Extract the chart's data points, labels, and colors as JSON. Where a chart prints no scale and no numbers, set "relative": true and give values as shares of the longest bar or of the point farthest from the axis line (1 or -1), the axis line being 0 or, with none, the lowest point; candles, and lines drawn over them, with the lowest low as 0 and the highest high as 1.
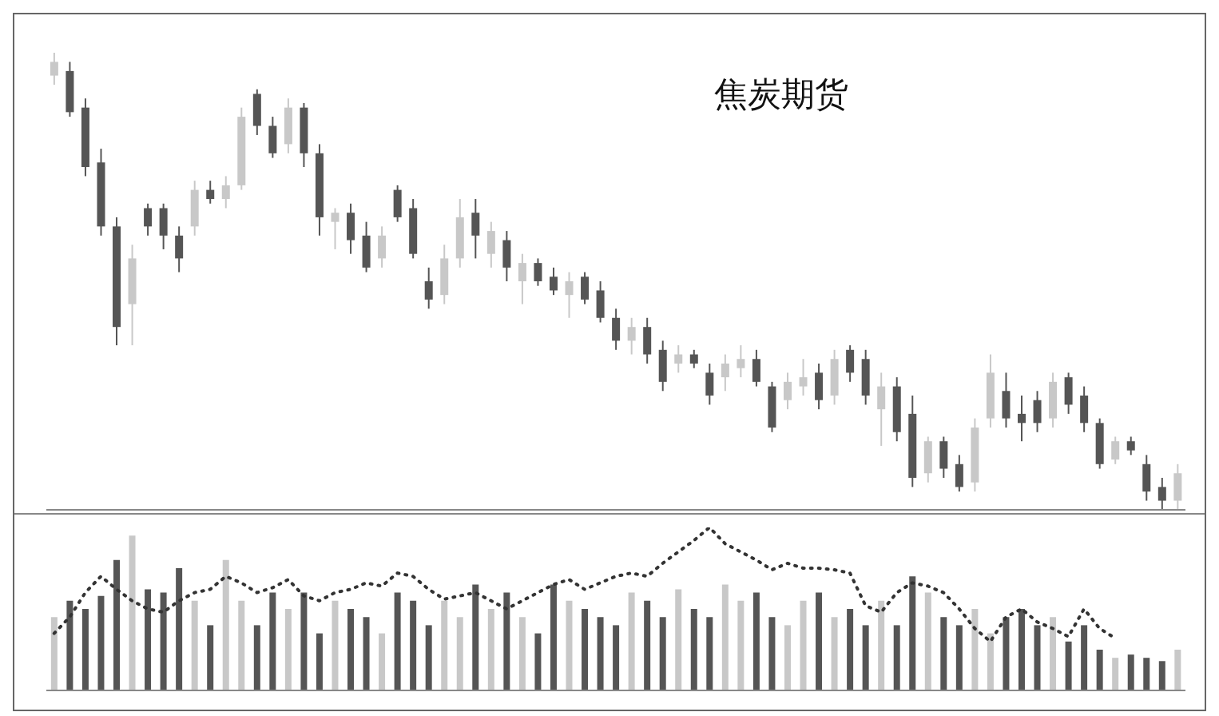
{
  "chart_data": [
    {
      "type": "candlestick",
      "title": "焦炭期货",
      "relative": true,
      "categories": [
        null,
        null,
        null,
        null,
        null,
        null,
        null,
        null,
        null,
        null,
        null,
        null,
        null,
        null,
        null,
        null,
        null,
        null,
        null,
        null,
        null,
        null,
        null,
        null,
        null,
        null,
        null,
        null,
        null,
        null,
        null,
        null,
        null,
        null,
        null,
        null,
        null,
        null,
        null,
        null,
        null,
        null,
        null,
        null,
        null,
        null,
        null,
        null,
        null,
        null,
        null,
        null,
        null,
        null,
        null,
        null,
        null,
        null,
        null,
        null,
        null,
        null,
        null,
        null,
        null,
        null,
        null,
        null,
        null,
        null,
        null,
        null,
        null
      ],
      "ohlc": [
        [
          0.95,
          1.0,
          0.93,
          0.98
        ],
        [
          0.96,
          0.98,
          0.86,
          0.87
        ],
        [
          0.88,
          0.9,
          0.73,
          0.75
        ],
        [
          0.76,
          0.79,
          0.6,
          0.62
        ],
        [
          0.62,
          0.64,
          0.36,
          0.4
        ],
        [
          0.45,
          0.58,
          0.36,
          0.55
        ],
        [
          0.66,
          0.67,
          0.6,
          0.62
        ],
        [
          0.66,
          0.67,
          0.57,
          0.6
        ],
        [
          0.6,
          0.62,
          0.52,
          0.55
        ],
        [
          0.62,
          0.72,
          0.6,
          0.7
        ],
        [
          0.7,
          0.72,
          0.67,
          0.68
        ],
        [
          0.68,
          0.73,
          0.66,
          0.71
        ],
        [
          0.71,
          0.88,
          0.7,
          0.86
        ],
        [
          0.91,
          0.92,
          0.82,
          0.84
        ],
        [
          0.84,
          0.86,
          0.77,
          0.78
        ],
        [
          0.8,
          0.9,
          0.78,
          0.88
        ],
        [
          0.88,
          0.89,
          0.75,
          0.78
        ],
        [
          0.78,
          0.8,
          0.6,
          0.64
        ],
        [
          0.63,
          0.66,
          0.57,
          0.65
        ],
        [
          0.65,
          0.67,
          0.56,
          0.59
        ],
        [
          0.6,
          0.63,
          0.52,
          0.53
        ],
        [
          0.55,
          0.62,
          0.53,
          0.6
        ],
        [
          0.7,
          0.71,
          0.63,
          0.64
        ],
        [
          0.66,
          0.68,
          0.55,
          0.56
        ],
        [
          0.5,
          0.53,
          0.44,
          0.46
        ],
        [
          0.47,
          0.58,
          0.45,
          0.55
        ],
        [
          0.55,
          0.68,
          0.53,
          0.64
        ],
        [
          0.65,
          0.68,
          0.55,
          0.6
        ],
        [
          0.56,
          0.63,
          0.53,
          0.61
        ],
        [
          0.59,
          0.61,
          0.5,
          0.53
        ],
        [
          0.5,
          0.56,
          0.45,
          0.54
        ],
        [
          0.54,
          0.55,
          0.49,
          0.5
        ],
        [
          0.51,
          0.53,
          0.47,
          0.48
        ],
        [
          0.47,
          0.52,
          0.42,
          0.5
        ],
        [
          0.51,
          0.52,
          0.45,
          0.46
        ],
        [
          0.48,
          0.5,
          0.41,
          0.42
        ],
        [
          0.42,
          0.44,
          0.35,
          0.37
        ],
        [
          0.37,
          0.42,
          0.34,
          0.4
        ],
        [
          0.4,
          0.42,
          0.32,
          0.34
        ],
        [
          0.35,
          0.37,
          0.26,
          0.28
        ],
        [
          0.32,
          0.36,
          0.3,
          0.34
        ],
        [
          0.34,
          0.35,
          0.31,
          0.32
        ],
        [
          0.3,
          0.32,
          0.23,
          0.25
        ],
        [
          0.29,
          0.34,
          0.26,
          0.32
        ],
        [
          0.31,
          0.36,
          0.29,
          0.33
        ],
        [
          0.33,
          0.35,
          0.27,
          0.28
        ],
        [
          0.27,
          0.28,
          0.17,
          0.18
        ],
        [
          0.24,
          0.3,
          0.22,
          0.28
        ],
        [
          0.27,
          0.33,
          0.25,
          0.29
        ],
        [
          0.3,
          0.32,
          0.22,
          0.24
        ],
        [
          0.25,
          0.35,
          0.23,
          0.33
        ],
        [
          0.35,
          0.36,
          0.28,
          0.3
        ],
        [
          0.33,
          0.35,
          0.23,
          0.25
        ],
        [
          0.22,
          0.3,
          0.14,
          0.27
        ],
        [
          0.27,
          0.29,
          0.15,
          0.17
        ],
        [
          0.21,
          0.25,
          0.05,
          0.07
        ],
        [
          0.08,
          0.16,
          0.06,
          0.15
        ],
        [
          0.15,
          0.16,
          0.07,
          0.09
        ],
        [
          0.1,
          0.12,
          0.04,
          0.05
        ],
        [
          0.06,
          0.2,
          0.04,
          0.18
        ],
        [
          0.2,
          0.34,
          0.18,
          0.3
        ],
        [
          0.26,
          0.3,
          0.18,
          0.2
        ],
        [
          0.21,
          0.25,
          0.15,
          0.19
        ],
        [
          0.24,
          0.26,
          0.17,
          0.19
        ],
        [
          0.2,
          0.3,
          0.18,
          0.28
        ],
        [
          0.29,
          0.3,
          0.21,
          0.23
        ],
        [
          0.25,
          0.27,
          0.17,
          0.19
        ],
        [
          0.19,
          0.2,
          0.09,
          0.1
        ],
        [
          0.11,
          0.16,
          0.1,
          0.15
        ],
        [
          0.15,
          0.16,
          0.12,
          0.13
        ],
        [
          0.1,
          0.12,
          0.02,
          0.04
        ],
        [
          0.05,
          0.07,
          0.0,
          0.02
        ],
        [
          0.02,
          0.1,
          0.0,
          0.08
        ]
      ],
      "colors": [
        "#c8c8c8",
        "#555555",
        "#555555",
        "#555555",
        "#555555",
        "#c8c8c8",
        "#555555",
        "#555555",
        "#555555",
        "#c8c8c8",
        "#555555",
        "#c8c8c8",
        "#c8c8c8",
        "#555555",
        "#555555",
        "#c8c8c8",
        "#555555",
        "#555555",
        "#c8c8c8",
        "#555555",
        "#555555",
        "#c8c8c8",
        "#555555",
        "#555555",
        "#555555",
        "#c8c8c8",
        "#c8c8c8",
        "#555555",
        "#c8c8c8",
        "#555555",
        "#c8c8c8",
        "#555555",
        "#555555",
        "#c8c8c8",
        "#555555",
        "#555555",
        "#555555",
        "#c8c8c8",
        "#555555",
        "#555555",
        "#c8c8c8",
        "#555555",
        "#555555",
        "#c8c8c8",
        "#c8c8c8",
        "#555555",
        "#555555",
        "#c8c8c8",
        "#c8c8c8",
        "#555555",
        "#c8c8c8",
        "#555555",
        "#555555",
        "#c8c8c8",
        "#555555",
        "#555555",
        "#c8c8c8",
        "#555555",
        "#555555",
        "#c8c8c8",
        "#c8c8c8",
        "#555555",
        "#555555",
        "#555555",
        "#c8c8c8",
        "#555555",
        "#555555",
        "#555555",
        "#c8c8c8",
        "#555555",
        "#555555",
        "#555555",
        "#c8c8c8"
      ]
    },
    {
      "type": "bar",
      "relative": true,
      "categories": [
        null,
        null,
        null,
        null,
        null,
        null,
        null,
        null,
        null,
        null,
        null,
        null,
        null,
        null,
        null,
        null,
        null,
        null,
        null,
        null,
        null,
        null,
        null,
        null,
        null,
        null,
        null,
        null,
        null,
        null,
        null,
        null,
        null,
        null,
        null,
        null,
        null,
        null,
        null,
        null,
        null,
        null,
        null,
        null,
        null,
        null,
        null,
        null,
        null,
        null,
        null,
        null,
        null,
        null,
        null,
        null,
        null,
        null,
        null,
        null,
        null,
        null,
        null,
        null,
        null,
        null,
        null,
        null,
        null,
        null,
        null,
        null,
        null
      ],
      "series": [
        {
          "type": "bar",
          "values": [
            0.45,
            0.55,
            0.5,
            0.58,
            0.8,
            0.95,
            0.62,
            0.6,
            0.75,
            0.55,
            0.4,
            0.8,
            0.55,
            0.4,
            0.6,
            0.5,
            0.6,
            0.35,
            0.55,
            0.5,
            0.45,
            0.35,
            0.6,
            0.55,
            0.4,
            0.55,
            0.45,
            0.65,
            0.5,
            0.6,
            0.45,
            0.35,
            0.65,
            0.55,
            0.5,
            0.45,
            0.4,
            0.6,
            0.55,
            0.45,
            0.62,
            0.5,
            0.45,
            0.65,
            0.55,
            0.6,
            0.45,
            0.4,
            0.55,
            0.6,
            0.45,
            0.5,
            0.4,
            0.55,
            0.4,
            0.7,
            0.6,
            0.45,
            0.4,
            0.5,
            0.35,
            0.45,
            0.5,
            0.4,
            0.45,
            0.3,
            0.4,
            0.25,
            0.2,
            0.22,
            0.2,
            0.18,
            0.25
          ],
          "colors": [
            "#c8c8c8",
            "#555555",
            "#555555",
            "#555555",
            "#555555",
            "#c8c8c8",
            "#555555",
            "#555555",
            "#555555",
            "#c8c8c8",
            "#555555",
            "#c8c8c8",
            "#c8c8c8",
            "#555555",
            "#555555",
            "#c8c8c8",
            "#555555",
            "#555555",
            "#c8c8c8",
            "#555555",
            "#555555",
            "#c8c8c8",
            "#555555",
            "#555555",
            "#555555",
            "#c8c8c8",
            "#c8c8c8",
            "#555555",
            "#c8c8c8",
            "#555555",
            "#c8c8c8",
            "#555555",
            "#555555",
            "#c8c8c8",
            "#555555",
            "#555555",
            "#555555",
            "#c8c8c8",
            "#555555",
            "#555555",
            "#c8c8c8",
            "#555555",
            "#555555",
            "#c8c8c8",
            "#c8c8c8",
            "#555555",
            "#555555",
            "#c8c8c8",
            "#c8c8c8",
            "#555555",
            "#c8c8c8",
            "#555555",
            "#555555",
            "#c8c8c8",
            "#555555",
            "#555555",
            "#c8c8c8",
            "#555555",
            "#555555",
            "#c8c8c8",
            "#c8c8c8",
            "#555555",
            "#555555",
            "#555555",
            "#c8c8c8",
            "#555555",
            "#555555",
            "#555555",
            "#c8c8c8",
            "#555555",
            "#555555",
            "#555555",
            "#c8c8c8"
          ]
        },
        {
          "type": "line",
          "color": "#333333",
          "line_style": "dotted",
          "values": [
            0.35,
            0.45,
            0.6,
            0.7,
            0.62,
            0.55,
            0.5,
            0.48,
            0.55,
            0.6,
            0.62,
            0.7,
            0.66,
            0.6,
            0.63,
            0.68,
            0.58,
            0.55,
            0.6,
            0.62,
            0.66,
            0.64,
            0.72,
            0.7,
            0.62,
            0.56,
            0.58,
            0.6,
            0.55,
            0.5,
            0.55,
            0.6,
            0.65,
            0.68,
            0.62,
            0.66,
            0.7,
            0.72,
            0.7,
            0.78,
            0.85,
            0.92,
            1.0,
            0.9,
            0.85,
            0.8,
            0.74,
            0.78,
            0.75,
            0.75,
            0.74,
            0.72,
            0.52,
            0.48,
            0.6,
            0.66,
            0.64,
            0.6,
            0.5,
            0.38,
            0.3,
            0.45,
            0.5,
            0.42,
            0.38,
            0.33,
            0.5,
            0.38,
            0.32,
            null,
            null,
            null,
            null
          ]
        }
      ]
    }
  ]
}
